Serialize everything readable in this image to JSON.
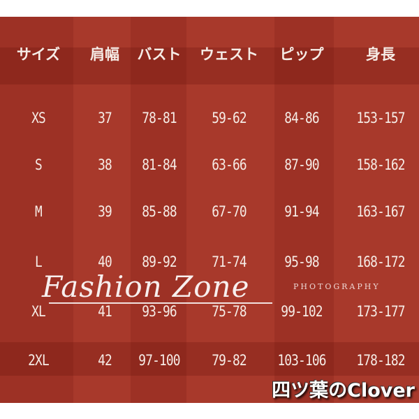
{
  "table": {
    "headers": [
      "サイズ",
      "肩幅",
      "バスト",
      "ウェスト",
      "ピップ",
      "身長"
    ],
    "rows": [
      [
        "XS",
        "37",
        "78-81",
        "59-62",
        "84-86",
        "153-157"
      ],
      [
        "S",
        "38",
        "81-84",
        "63-66",
        "87-90",
        "158-162"
      ],
      [
        "M",
        "39",
        "85-88",
        "67-70",
        "91-94",
        "163-167"
      ],
      [
        "L",
        "40",
        "89-92",
        "71-74",
        "95-98",
        "168-172"
      ],
      [
        "XL",
        "41",
        "93-96",
        "75-78",
        "99-102",
        "173-177"
      ],
      [
        "2XL",
        "42",
        "97-100",
        "79-82",
        "103-106",
        "178-182"
      ]
    ]
  },
  "watermark": {
    "title": "Fashion Zone",
    "subtitle": "PHOTOGRAPHY"
  },
  "brand": "四ツ葉のClover",
  "colors": {
    "background": "#a8392b",
    "text": "#f6ece6"
  }
}
